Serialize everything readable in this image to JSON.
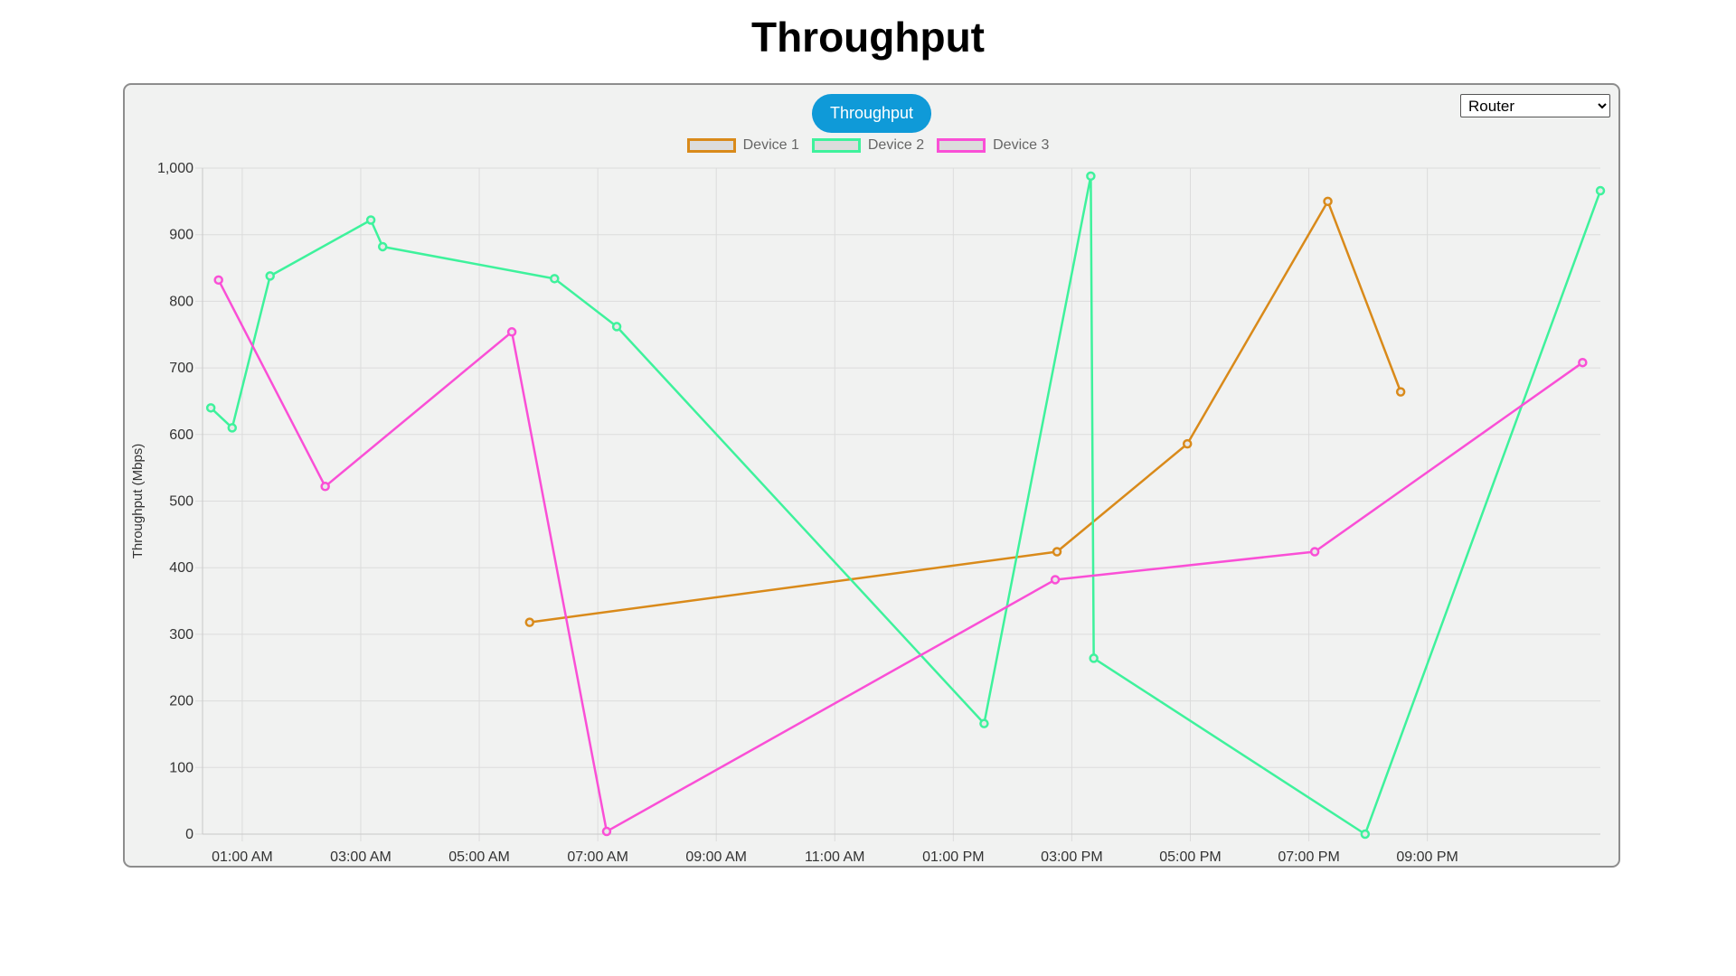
{
  "page": {
    "title": "Throughput"
  },
  "controls": {
    "tab_label": "Throughput",
    "select_value": "Router",
    "select_options": [
      "Router"
    ]
  },
  "colors": {
    "device1": "#d98a1a",
    "device2": "#3ef29c",
    "device3": "#fa4fd6",
    "tab_accent": "#0f9ad8",
    "panel_bg": "#f1f2f1",
    "grid": "#dcdcdc"
  },
  "chart_data": {
    "type": "line",
    "title": "",
    "xlabel": "",
    "ylabel": "Throughput (Mbps)",
    "ylim": [
      0,
      1000
    ],
    "y_ticks": [
      "0",
      "100",
      "200",
      "300",
      "400",
      "500",
      "600",
      "700",
      "800",
      "900",
      "1,000"
    ],
    "x_tick_labels": [
      "01:00 AM",
      "03:00 AM",
      "05:00 AM",
      "07:00 AM",
      "09:00 AM",
      "11:00 AM",
      "01:00 PM",
      "03:00 PM",
      "05:00 PM",
      "07:00 PM",
      "09:00 PM"
    ],
    "x_unit": "hour of day",
    "xlim": [
      0.33,
      23.92
    ],
    "grid": true,
    "legend_position": "top-center",
    "series": [
      {
        "name": "Device 1",
        "color_key": "device1",
        "points": [
          [
            5.85,
            318
          ],
          [
            14.75,
            424
          ],
          [
            16.95,
            586
          ],
          [
            19.32,
            950
          ],
          [
            20.55,
            664
          ]
        ]
      },
      {
        "name": "Device 2",
        "color_key": "device2",
        "points": [
          [
            0.47,
            640
          ],
          [
            0.83,
            610
          ],
          [
            1.47,
            838
          ],
          [
            3.17,
            922
          ],
          [
            3.37,
            882
          ],
          [
            6.27,
            834
          ],
          [
            7.32,
            762
          ],
          [
            13.52,
            166
          ],
          [
            15.32,
            988
          ],
          [
            15.37,
            264
          ],
          [
            19.95,
            0
          ],
          [
            23.92,
            966
          ]
        ]
      },
      {
        "name": "Device 3",
        "color_key": "device3",
        "points": [
          [
            0.6,
            832
          ],
          [
            2.4,
            522
          ],
          [
            5.55,
            754
          ],
          [
            7.15,
            4
          ],
          [
            14.72,
            382
          ],
          [
            19.1,
            424
          ],
          [
            23.62,
            708
          ]
        ]
      }
    ]
  }
}
